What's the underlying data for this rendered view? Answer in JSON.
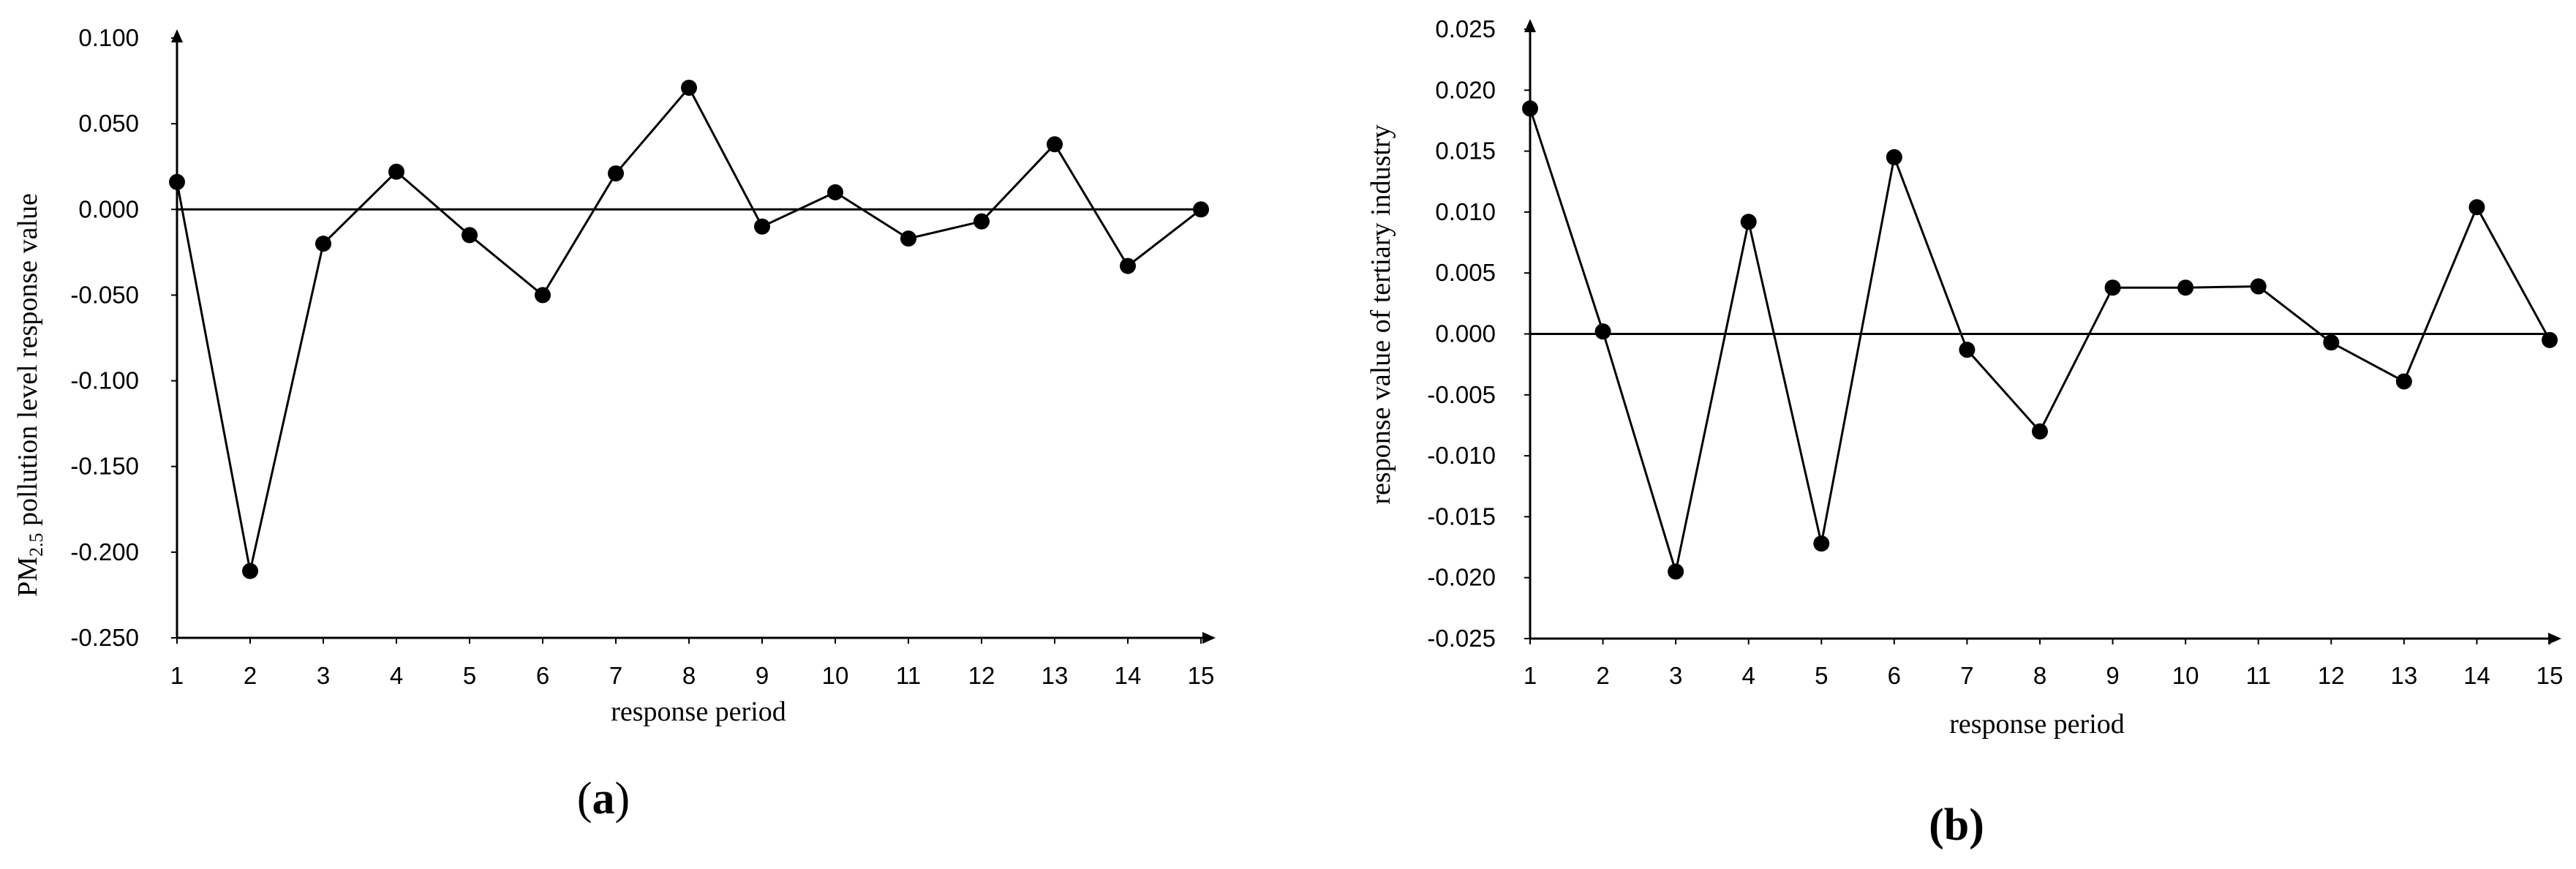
{
  "chart_data": [
    {
      "type": "line",
      "panel_label_open": "(",
      "panel_letter": "a",
      "panel_label_close": ")",
      "xlabel": "response period",
      "ylabel_prefix": "PM",
      "ylabel_subscript": "2.5",
      "ylabel_suffix": " pollution level response value",
      "categories": [
        "1",
        "2",
        "3",
        "4",
        "5",
        "6",
        "7",
        "8",
        "9",
        "10",
        "11",
        "12",
        "13",
        "14",
        "15"
      ],
      "x": [
        1,
        2,
        3,
        4,
        5,
        6,
        7,
        8,
        9,
        10,
        11,
        12,
        13,
        14,
        15
      ],
      "values": [
        0.016,
        -0.211,
        -0.02,
        0.022,
        -0.015,
        -0.05,
        0.021,
        0.071,
        -0.01,
        0.01,
        -0.017,
        -0.007,
        0.038,
        -0.033,
        0.0
      ],
      "ylim": [
        -0.25,
        0.1
      ],
      "yticks": [
        0.1,
        0.05,
        0.0,
        -0.05,
        -0.1,
        -0.15,
        -0.2,
        -0.25
      ],
      "ytick_labels": [
        "0.100",
        "0.050",
        "0.000",
        "-0.050",
        "-0.100",
        "-0.150",
        "-0.200",
        "-0.250"
      ],
      "zero_line": true,
      "marker": "circle",
      "color": "#000000",
      "grid": false
    },
    {
      "type": "line",
      "panel_label": "(b)",
      "xlabel": "response period",
      "ylabel": "response value of tertiary industry",
      "categories": [
        "1",
        "2",
        "3",
        "4",
        "5",
        "6",
        "7",
        "8",
        "9",
        "10",
        "11",
        "12",
        "13",
        "14",
        "15"
      ],
      "x": [
        1,
        2,
        3,
        4,
        5,
        6,
        7,
        8,
        9,
        10,
        11,
        12,
        13,
        14,
        15
      ],
      "values": [
        0.0185,
        0.0002,
        -0.0195,
        0.0092,
        -0.0172,
        0.0145,
        -0.0013,
        -0.008,
        0.0038,
        0.0038,
        0.0039,
        -0.0007,
        -0.0039,
        0.0104,
        -0.0005
      ],
      "ylim": [
        -0.025,
        0.025
      ],
      "yticks": [
        0.025,
        0.02,
        0.015,
        0.01,
        0.005,
        0.0,
        -0.005,
        -0.01,
        -0.015,
        -0.02,
        -0.025
      ],
      "ytick_labels": [
        "0.025",
        "0.020",
        "0.015",
        "0.010",
        "0.005",
        "0.000",
        "-0.005",
        "-0.010",
        "-0.015",
        "-0.020",
        "-0.025"
      ],
      "zero_line": true,
      "marker": "circle",
      "color": "#000000",
      "grid": false
    }
  ]
}
